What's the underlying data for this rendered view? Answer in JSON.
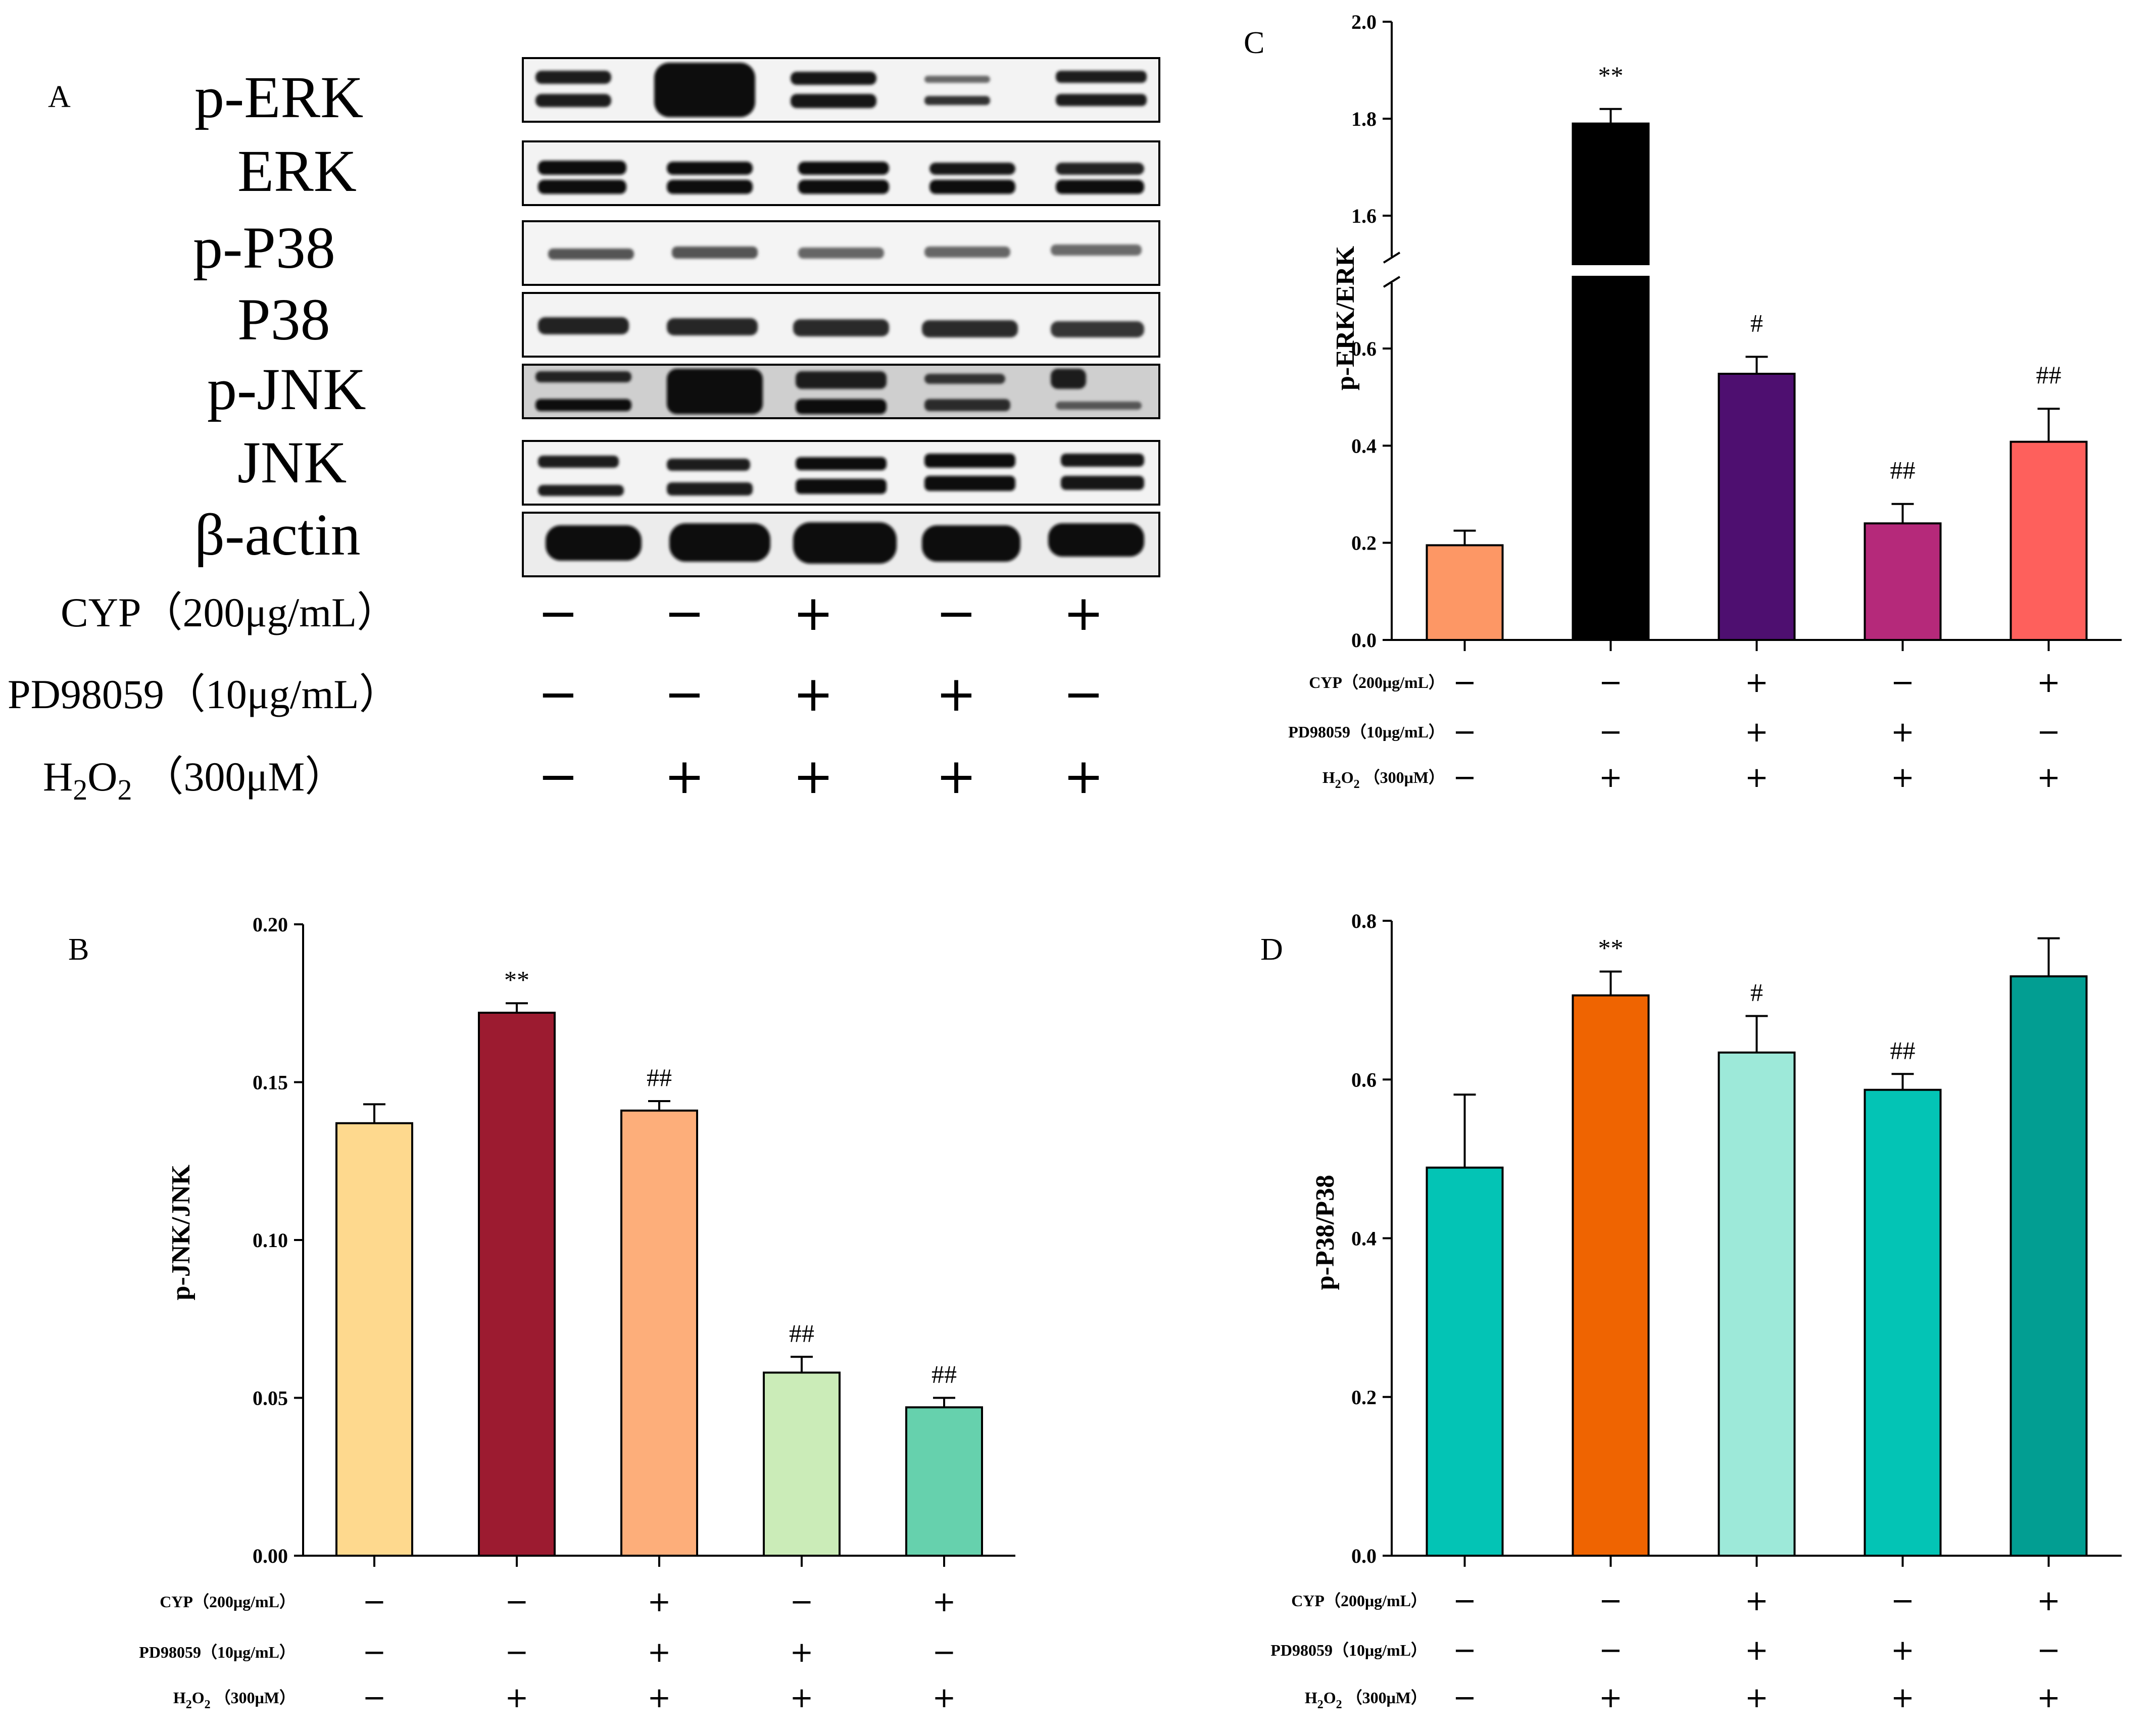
{
  "blot_panel": {
    "letter": "A",
    "proteins": [
      "p-ERK",
      "ERK",
      "p-P38",
      "P38",
      "p-JNK",
      "JNK",
      "β-actin"
    ],
    "conditions": [
      {
        "label": "CYP（200μg/mL）",
        "signs": [
          "−",
          "−",
          "+",
          "−",
          "+"
        ]
      },
      {
        "label": "PD98059（10μg/mL）",
        "signs": [
          "−",
          "−",
          "+",
          "+",
          "−"
        ]
      },
      {
        "label_parts": [
          "H",
          "2",
          "O",
          "2",
          "（300μM）"
        ],
        "signs": [
          "−",
          "+",
          "+",
          "+",
          "+"
        ]
      }
    ]
  },
  "chart_data": [
    {
      "panel": "C",
      "type": "bar",
      "ylabel": "p-ERK/ERK",
      "axis_break": {
        "lower": [
          0,
          0.7
        ],
        "upper": [
          1.5,
          2.0
        ]
      },
      "ticks_lower": [
        "0.0",
        "0.2",
        "0.4",
        "0.6"
      ],
      "ticks_upper": [
        "1.6",
        "1.8",
        "2.0"
      ],
      "values": [
        0.195,
        1.79,
        0.548,
        0.24,
        0.408
      ],
      "errors": [
        0.03,
        0.03,
        0.035,
        0.04,
        0.068
      ],
      "colors": [
        "#fd9765",
        "#000000",
        "#4e0f70",
        "#b5297a",
        "#fe605c"
      ],
      "significance": [
        "",
        "**",
        "#",
        "##",
        "##"
      ],
      "conditions": [
        {
          "label": "CYP（200μg/mL）",
          "signs": [
            "−",
            "−",
            "+",
            "−",
            "+"
          ]
        },
        {
          "label": "PD98059（10μg/mL）",
          "signs": [
            "−",
            "−",
            "+",
            "+",
            "−"
          ]
        },
        {
          "label_parts": [
            "H",
            "2",
            "O",
            "2",
            "（300μM）"
          ],
          "signs": [
            "−",
            "+",
            "+",
            "+",
            "+"
          ]
        }
      ]
    },
    {
      "panel": "B",
      "type": "bar",
      "ylabel": "p-JNK/JNK",
      "ylim": [
        0,
        0.2
      ],
      "ticks": [
        "0.00",
        "0.05",
        "0.10",
        "0.15",
        "0.20"
      ],
      "values": [
        0.137,
        0.172,
        0.141,
        0.058,
        0.047
      ],
      "errors": [
        0.006,
        0.003,
        0.003,
        0.005,
        0.003
      ],
      "colors": [
        "#fed98e",
        "#9c1b30",
        "#fdae7a",
        "#cbecb8",
        "#66d1ad"
      ],
      "significance": [
        "",
        "**",
        "##",
        "##",
        "##"
      ],
      "conditions": [
        {
          "label": "CYP（200μg/mL）",
          "signs": [
            "−",
            "−",
            "+",
            "−",
            "+"
          ]
        },
        {
          "label": "PD98059（10μg/mL）",
          "signs": [
            "−",
            "−",
            "+",
            "+",
            "−"
          ]
        },
        {
          "label_parts": [
            "H",
            "2",
            "O",
            "2",
            "（300μM）"
          ],
          "signs": [
            "−",
            "+",
            "+",
            "+",
            "+"
          ]
        }
      ]
    },
    {
      "panel": "D",
      "type": "bar",
      "ylabel": "p-P38/P38",
      "ylim": [
        0,
        0.8
      ],
      "ticks": [
        "0.0",
        "0.2",
        "0.4",
        "0.6",
        "0.8"
      ],
      "values": [
        0.489,
        0.706,
        0.634,
        0.587,
        0.73
      ],
      "errors": [
        0.092,
        0.03,
        0.046,
        0.02,
        0.048
      ],
      "colors": [
        "#03c4b5",
        "#ef6401",
        "#9de9d9",
        "#03c4b5",
        "#029e92"
      ],
      "significance": [
        "",
        "**",
        "#",
        "##",
        ""
      ],
      "conditions": [
        {
          "label": "CYP（200μg/mL）",
          "signs": [
            "−",
            "−",
            "+",
            "−",
            "+"
          ]
        },
        {
          "label": "PD98059（10μg/mL）",
          "signs": [
            "−",
            "−",
            "+",
            "+",
            "−"
          ]
        },
        {
          "label_parts": [
            "H",
            "2",
            "O",
            "2",
            "（300μM）"
          ],
          "signs": [
            "−",
            "+",
            "+",
            "+",
            "+"
          ]
        }
      ]
    }
  ]
}
